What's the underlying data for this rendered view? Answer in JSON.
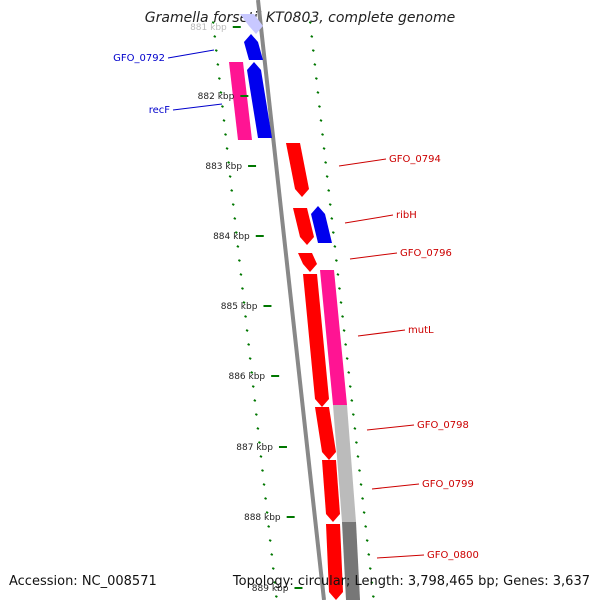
{
  "title": "Gramella forsetii KT0803, complete genome",
  "footer": {
    "accession": "Accession: NC_008571",
    "topology": "Topology: circular; Length: 3,798,465 bp; Genes: 3,637"
  },
  "map": {
    "ticks": [
      "881 kbp",
      "882 kbp",
      "883 kbp",
      "884 kbp",
      "885 kbp",
      "886 kbp",
      "887 kbp",
      "888 kbp",
      "889 kbp"
    ],
    "genes": [
      {
        "label": "GFO_0792",
        "color": "#0000cc",
        "strand": "left"
      },
      {
        "label": "recF",
        "color": "#0000cc",
        "strand": "left"
      },
      {
        "label": "GFO_0794",
        "color": "#cc0000",
        "strand": "right"
      },
      {
        "label": "ribH",
        "color": "#cc0000",
        "strand": "right"
      },
      {
        "label": "GFO_0796",
        "color": "#cc0000",
        "strand": "right"
      },
      {
        "label": "mutL",
        "color": "#cc0000",
        "strand": "right"
      },
      {
        "label": "GFO_0798",
        "color": "#cc0000",
        "strand": "right"
      },
      {
        "label": "GFO_0799",
        "color": "#cc0000",
        "strand": "right"
      },
      {
        "label": "GFO_0800",
        "color": "#cc0000",
        "strand": "right"
      }
    ],
    "colors": {
      "forward": "#ff0000",
      "reverse": "#0000ee",
      "rna": "#ff1493",
      "neutral": "#bbbbbb",
      "dark": "#777777",
      "tick": "#007700",
      "backbone": "#888888"
    }
  }
}
